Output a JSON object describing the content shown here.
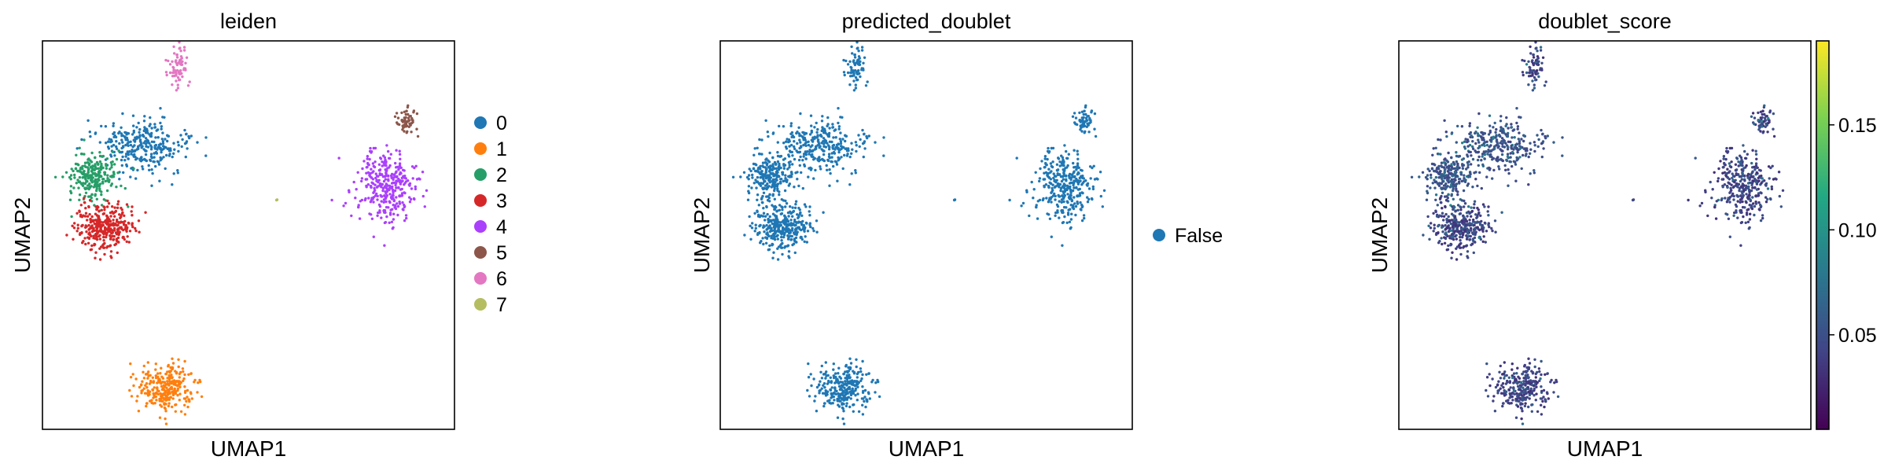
{
  "chart_data": [
    {
      "type": "scatter",
      "title": "leiden",
      "xlabel": "UMAP1",
      "ylabel": "UMAP2",
      "color_by": "categorical",
      "legend_placement": "right",
      "legend": [
        {
          "label": "0",
          "color": "#1f77b4"
        },
        {
          "label": "1",
          "color": "#ff7f0e"
        },
        {
          "label": "2",
          "color": "#279e68"
        },
        {
          "label": "3",
          "color": "#d62728"
        },
        {
          "label": "4",
          "color": "#aa40fc"
        },
        {
          "label": "5",
          "color": "#8c564b"
        },
        {
          "label": "6",
          "color": "#e377c2"
        },
        {
          "label": "7",
          "color": "#b5bd61"
        }
      ],
      "clusters": [
        {
          "label": "0",
          "center": [
            -4.2,
            5.2
          ],
          "spread": [
            1.3,
            0.75
          ],
          "n": 300
        },
        {
          "label": "1",
          "center": [
            -3.4,
            -3.2
          ],
          "spread": [
            0.8,
            0.65
          ],
          "n": 280
        },
        {
          "label": "2",
          "center": [
            -6.0,
            4.1
          ],
          "spread": [
            0.7,
            0.65
          ],
          "n": 250
        },
        {
          "label": "3",
          "center": [
            -5.6,
            2.4
          ],
          "spread": [
            0.85,
            0.65
          ],
          "n": 340
        },
        {
          "label": "4",
          "center": [
            4.4,
            3.8
          ],
          "spread": [
            0.8,
            1.0
          ],
          "n": 340
        },
        {
          "label": "5",
          "center": [
            5.1,
            6.0
          ],
          "spread": [
            0.3,
            0.4
          ],
          "n": 60
        },
        {
          "label": "6",
          "center": [
            -3.0,
            8.0
          ],
          "spread": [
            0.3,
            0.55
          ],
          "n": 70
        },
        {
          "label": "7",
          "center": [
            0.5,
            3.3
          ],
          "spread": [
            0.05,
            0.05
          ],
          "n": 3
        }
      ],
      "grid": false
    },
    {
      "type": "scatter",
      "title": "predicted_doublet",
      "xlabel": "UMAP1",
      "ylabel": "UMAP2",
      "color_by": "categorical",
      "legend_placement": "right",
      "legend": [
        {
          "label": "False",
          "color": "#1f77b4"
        }
      ],
      "grid": false
    },
    {
      "type": "scatter",
      "title": "doublet_score",
      "xlabel": "UMAP1",
      "ylabel": "UMAP2",
      "color_by": "continuous",
      "colormap": "viridis",
      "colorbar": {
        "vmin": 0.005,
        "vmax": 0.19,
        "ticks": [
          {
            "value": 0.05,
            "label": "0.05"
          },
          {
            "value": 0.1,
            "label": "0.10"
          },
          {
            "value": 0.15,
            "label": "0.15"
          }
        ],
        "colors": [
          "#440154",
          "#414487",
          "#2a788e",
          "#22a884",
          "#7ad151",
          "#fde725"
        ]
      },
      "grid": false
    }
  ]
}
